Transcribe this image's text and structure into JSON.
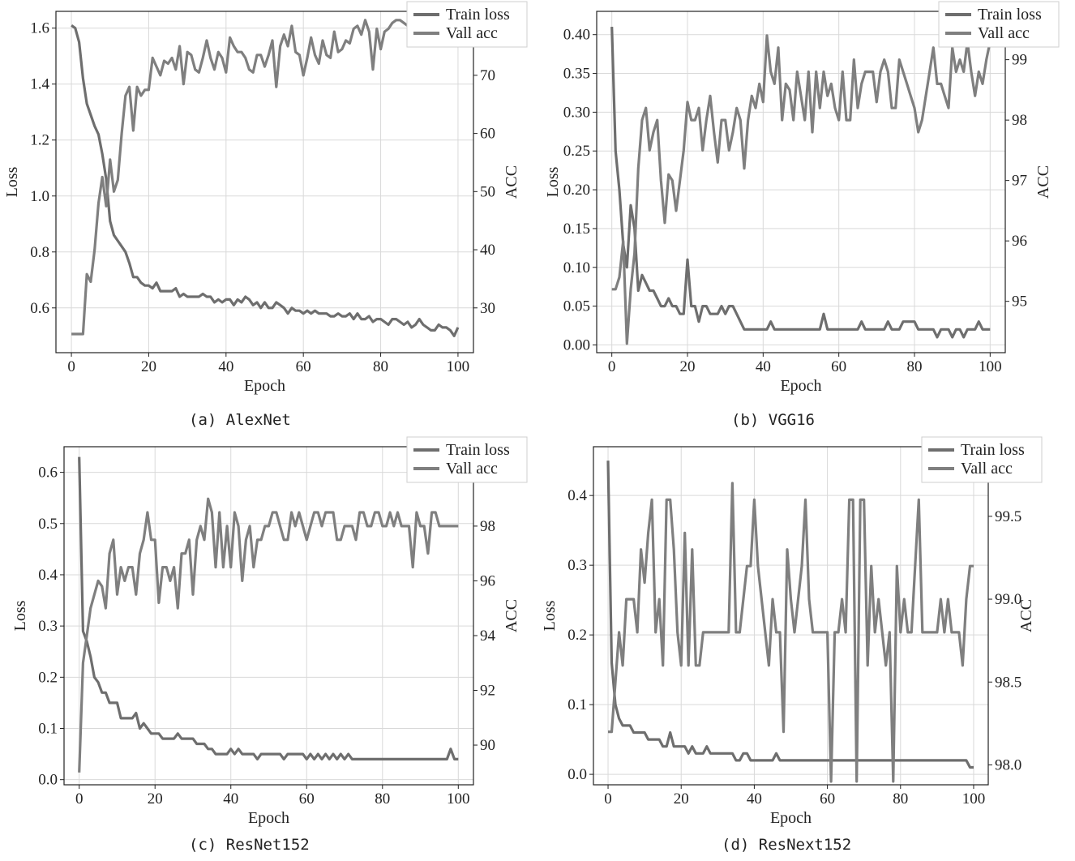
{
  "captions": [
    "(a) AlexNet",
    "(b) VGG16",
    "(c) ResNet152",
    "(d) ResNext152"
  ],
  "colors": {
    "train_loss": "#6e6e6e",
    "vall_acc": "#7f7f7f",
    "grid": "#d9d9d9",
    "axis": "#222222"
  },
  "chart_data": [
    {
      "type": "line",
      "xlabel": "Epoch",
      "ylabel": "Loss",
      "y2label": "ACC",
      "xlim": [
        -4,
        104
      ],
      "xticks": [
        0,
        20,
        40,
        60,
        80,
        100
      ],
      "ylim": [
        0.44,
        1.66
      ],
      "yticks": [
        "0.6",
        "0.8",
        "1.0",
        "1.2",
        "1.4",
        "1.6"
      ],
      "y2lim": [
        22.3,
        81
      ],
      "y2ticks": [
        "30",
        "40",
        "50",
        "60",
        "70"
      ],
      "legend": "top-right",
      "series": [
        {
          "name": "Train loss",
          "axis": "left",
          "values": [
            1.61,
            1.6,
            1.55,
            1.42,
            1.33,
            1.29,
            1.25,
            1.22,
            1.15,
            1.06,
            0.91,
            0.86,
            0.84,
            0.82,
            0.8,
            0.76,
            0.71,
            0.71,
            0.69,
            0.68,
            0.68,
            0.67,
            0.69,
            0.66,
            0.66,
            0.66,
            0.66,
            0.67,
            0.64,
            0.65,
            0.64,
            0.64,
            0.64,
            0.64,
            0.65,
            0.64,
            0.64,
            0.62,
            0.63,
            0.62,
            0.63,
            0.63,
            0.61,
            0.63,
            0.62,
            0.64,
            0.63,
            0.61,
            0.62,
            0.6,
            0.62,
            0.6,
            0.6,
            0.62,
            0.61,
            0.6,
            0.58,
            0.6,
            0.59,
            0.59,
            0.58,
            0.59,
            0.58,
            0.59,
            0.58,
            0.58,
            0.58,
            0.57,
            0.57,
            0.58,
            0.57,
            0.57,
            0.58,
            0.56,
            0.58,
            0.56,
            0.56,
            0.57,
            0.55,
            0.56,
            0.56,
            0.55,
            0.54,
            0.56,
            0.56,
            0.55,
            0.54,
            0.55,
            0.53,
            0.54,
            0.56,
            0.54,
            0.53,
            0.52,
            0.52,
            0.54,
            0.53,
            0.53,
            0.52,
            0.5,
            0.53
          ]
        },
        {
          "name": "Vall acc",
          "axis": "right",
          "values": [
            25.5,
            25.5,
            25.5,
            25.5,
            35.8,
            34.5,
            40.0,
            48.0,
            52.5,
            47.5,
            55.5,
            50.0,
            52.0,
            60.0,
            66.5,
            68.0,
            60.5,
            68.0,
            66.5,
            67.5,
            67.5,
            73.0,
            71.5,
            70.0,
            72.5,
            72.0,
            73.0,
            71.0,
            75.0,
            68.5,
            74.0,
            73.5,
            71.0,
            70.5,
            73.0,
            76.0,
            73.0,
            71.0,
            74.0,
            73.0,
            70.5,
            76.5,
            75.0,
            74.0,
            74.0,
            73.0,
            71.0,
            70.5,
            73.5,
            73.5,
            71.5,
            73.5,
            76.0,
            68.0,
            75.0,
            77.0,
            75.0,
            78.5,
            74.0,
            73.5,
            70.0,
            73.0,
            76.5,
            73.5,
            72.0,
            76.0,
            73.5,
            73.0,
            77.5,
            74.0,
            74.5,
            76.0,
            75.5,
            78.0,
            78.5,
            77.0,
            79.5,
            77.5,
            71.0,
            78.0,
            74.5,
            77.5,
            78.0,
            79.0,
            79.5,
            79.5,
            79.0,
            78.5,
            78.5,
            78.0,
            80.0,
            80.0,
            80.0,
            79.5,
            80.0,
            77.5,
            79.5,
            80.0,
            79.5,
            80.0,
            80.0
          ]
        }
      ]
    },
    {
      "type": "line",
      "xlabel": "Epoch",
      "ylabel": "Loss",
      "y2label": "ACC",
      "xlim": [
        -4,
        104
      ],
      "xticks": [
        0,
        20,
        40,
        60,
        80,
        100
      ],
      "ylim": [
        -0.01,
        0.43
      ],
      "yticks": [
        "0.00",
        "0.05",
        "0.10",
        "0.15",
        "0.20",
        "0.25",
        "0.30",
        "0.35",
        "0.40"
      ],
      "y2lim": [
        94.15,
        99.8
      ],
      "y2ticks": [
        "95",
        "96",
        "97",
        "98",
        "99"
      ],
      "legend": "top-right",
      "series": [
        {
          "name": "Train loss",
          "axis": "left",
          "values": [
            0.41,
            0.25,
            0.2,
            0.13,
            0.1,
            0.18,
            0.15,
            0.07,
            0.09,
            0.08,
            0.07,
            0.07,
            0.06,
            0.05,
            0.05,
            0.06,
            0.05,
            0.05,
            0.04,
            0.04,
            0.11,
            0.05,
            0.05,
            0.03,
            0.05,
            0.05,
            0.04,
            0.04,
            0.04,
            0.05,
            0.04,
            0.05,
            0.05,
            0.04,
            0.03,
            0.02,
            0.02,
            0.02,
            0.02,
            0.02,
            0.02,
            0.02,
            0.03,
            0.02,
            0.02,
            0.02,
            0.02,
            0.02,
            0.02,
            0.02,
            0.02,
            0.02,
            0.02,
            0.02,
            0.02,
            0.02,
            0.04,
            0.02,
            0.02,
            0.02,
            0.02,
            0.02,
            0.02,
            0.02,
            0.02,
            0.02,
            0.03,
            0.02,
            0.02,
            0.02,
            0.02,
            0.02,
            0.02,
            0.03,
            0.02,
            0.02,
            0.02,
            0.03,
            0.03,
            0.03,
            0.03,
            0.02,
            0.02,
            0.02,
            0.02,
            0.02,
            0.01,
            0.02,
            0.02,
            0.02,
            0.01,
            0.02,
            0.02,
            0.01,
            0.02,
            0.02,
            0.02,
            0.03,
            0.02,
            0.02,
            0.02
          ]
        },
        {
          "name": "Vall acc",
          "axis": "right",
          "values": [
            95.2,
            95.2,
            95.4,
            96.0,
            94.3,
            95.2,
            95.8,
            97.2,
            98.0,
            98.2,
            97.5,
            97.8,
            98.0,
            97.0,
            96.3,
            97.1,
            97.0,
            96.5,
            97.0,
            97.5,
            98.3,
            98.0,
            98.0,
            98.2,
            97.5,
            98.0,
            98.4,
            97.8,
            97.3,
            98.0,
            98.0,
            97.5,
            97.8,
            98.2,
            98.0,
            97.2,
            98.0,
            98.4,
            98.2,
            98.6,
            98.3,
            99.4,
            98.8,
            98.6,
            99.2,
            98.0,
            98.6,
            98.5,
            98.0,
            98.8,
            98.4,
            98.0,
            98.8,
            97.8,
            98.8,
            98.2,
            98.8,
            98.4,
            98.6,
            98.2,
            98.0,
            98.8,
            98.0,
            98.0,
            99.0,
            98.2,
            98.6,
            98.8,
            98.8,
            98.8,
            98.3,
            98.8,
            99.0,
            98.8,
            98.2,
            98.2,
            99.0,
            98.8,
            98.6,
            98.4,
            98.2,
            97.8,
            98.0,
            98.4,
            98.8,
            99.2,
            98.6,
            98.6,
            98.4,
            98.2,
            99.2,
            98.8,
            99.0,
            98.8,
            99.3,
            98.8,
            98.4,
            98.8,
            98.6,
            99.0,
            99.3
          ]
        }
      ]
    },
    {
      "type": "line",
      "xlabel": "Epoch",
      "ylabel": "Loss",
      "y2label": "ACC",
      "xlim": [
        -4,
        104
      ],
      "xticks": [
        0,
        20,
        40,
        60,
        80,
        100
      ],
      "ylim": [
        -0.01,
        0.65
      ],
      "yticks": [
        "0.0",
        "0.1",
        "0.2",
        "0.3",
        "0.4",
        "0.5",
        "0.6"
      ],
      "y2lim": [
        88.55,
        100.9
      ],
      "y2ticks": [
        "90",
        "92",
        "94",
        "96",
        "98"
      ],
      "legend": "top-right",
      "series": [
        {
          "name": "Train loss",
          "axis": "left",
          "values": [
            0.63,
            0.29,
            0.27,
            0.24,
            0.2,
            0.19,
            0.17,
            0.17,
            0.15,
            0.15,
            0.15,
            0.12,
            0.12,
            0.12,
            0.12,
            0.13,
            0.1,
            0.11,
            0.1,
            0.09,
            0.09,
            0.09,
            0.08,
            0.08,
            0.08,
            0.08,
            0.09,
            0.08,
            0.08,
            0.08,
            0.08,
            0.07,
            0.07,
            0.07,
            0.06,
            0.06,
            0.05,
            0.05,
            0.05,
            0.05,
            0.06,
            0.05,
            0.06,
            0.05,
            0.05,
            0.05,
            0.05,
            0.04,
            0.05,
            0.05,
            0.05,
            0.05,
            0.05,
            0.05,
            0.04,
            0.05,
            0.05,
            0.05,
            0.05,
            0.05,
            0.04,
            0.05,
            0.04,
            0.05,
            0.04,
            0.05,
            0.04,
            0.05,
            0.04,
            0.05,
            0.04,
            0.05,
            0.04,
            0.04,
            0.04,
            0.04,
            0.04,
            0.04,
            0.04,
            0.04,
            0.04,
            0.04,
            0.04,
            0.04,
            0.04,
            0.04,
            0.04,
            0.04,
            0.04,
            0.04,
            0.04,
            0.04,
            0.04,
            0.04,
            0.04,
            0.04,
            0.04,
            0.04,
            0.06,
            0.04,
            0.04
          ]
        },
        {
          "name": "Vall acc",
          "axis": "right",
          "values": [
            89.0,
            93.0,
            94.0,
            95.0,
            95.5,
            96.0,
            95.8,
            95.0,
            97.0,
            97.5,
            95.5,
            96.5,
            96.0,
            96.5,
            96.5,
            95.5,
            97.0,
            97.5,
            98.5,
            97.5,
            97.5,
            95.2,
            96.5,
            96.5,
            96.0,
            96.5,
            95.0,
            97.0,
            97.0,
            97.5,
            95.5,
            97.5,
            98.0,
            97.5,
            99.0,
            98.5,
            96.5,
            98.5,
            96.5,
            98.0,
            96.5,
            98.5,
            98.0,
            96.0,
            97.5,
            98.0,
            96.5,
            97.5,
            97.5,
            98.0,
            98.0,
            98.5,
            98.5,
            98.0,
            97.5,
            97.5,
            98.5,
            98.0,
            98.5,
            98.0,
            97.5,
            98.0,
            98.5,
            98.5,
            98.0,
            98.5,
            98.5,
            98.5,
            97.5,
            97.5,
            98.0,
            98.0,
            98.0,
            97.5,
            98.5,
            98.5,
            98.0,
            98.0,
            98.5,
            98.5,
            98.0,
            98.0,
            98.5,
            98.0,
            98.5,
            98.0,
            98.0,
            98.0,
            96.5,
            98.5,
            98.0,
            98.0,
            97.0,
            98.5,
            98.5,
            98.0,
            98.0,
            98.0,
            98.0,
            98.0,
            98.0
          ]
        }
      ]
    },
    {
      "type": "line",
      "xlabel": "Epoch",
      "ylabel": "Loss",
      "y2label": "ACC",
      "xlim": [
        -4,
        104
      ],
      "xticks": [
        0,
        20,
        40,
        60,
        80,
        100
      ],
      "ylim": [
        -0.015,
        0.47
      ],
      "yticks": [
        "0.0",
        "0.1",
        "0.2",
        "0.3",
        "0.4"
      ],
      "y2lim": [
        97.88,
        99.92
      ],
      "y2ticks": [
        "98.0",
        "98.5",
        "99.0",
        "99.5"
      ],
      "legend": "top-right",
      "series": [
        {
          "name": "Train loss",
          "axis": "left",
          "values": [
            0.45,
            0.16,
            0.1,
            0.08,
            0.07,
            0.07,
            0.07,
            0.06,
            0.06,
            0.06,
            0.06,
            0.05,
            0.05,
            0.05,
            0.05,
            0.04,
            0.04,
            0.06,
            0.04,
            0.04,
            0.04,
            0.04,
            0.03,
            0.04,
            0.03,
            0.03,
            0.03,
            0.04,
            0.03,
            0.03,
            0.03,
            0.03,
            0.03,
            0.03,
            0.03,
            0.02,
            0.02,
            0.03,
            0.03,
            0.02,
            0.02,
            0.02,
            0.02,
            0.02,
            0.02,
            0.02,
            0.03,
            0.02,
            0.02,
            0.02,
            0.02,
            0.02,
            0.02,
            0.02,
            0.02,
            0.02,
            0.02,
            0.02,
            0.02,
            0.02,
            0.02,
            0.02,
            0.02,
            0.02,
            0.02,
            0.02,
            0.02,
            0.02,
            0.02,
            0.02,
            0.02,
            0.02,
            0.02,
            0.02,
            0.02,
            0.02,
            0.02,
            0.02,
            0.02,
            0.02,
            0.02,
            0.02,
            0.02,
            0.02,
            0.02,
            0.02,
            0.02,
            0.02,
            0.02,
            0.02,
            0.02,
            0.02,
            0.02,
            0.02,
            0.02,
            0.02,
            0.02,
            0.02,
            0.02,
            0.01,
            0.01
          ]
        },
        {
          "name": "Vall acc",
          "axis": "right",
          "values": [
            98.2,
            98.2,
            98.5,
            98.8,
            98.6,
            99.0,
            99.0,
            99.0,
            98.8,
            99.3,
            99.1,
            99.4,
            99.6,
            98.8,
            99.0,
            98.6,
            99.6,
            99.6,
            99.3,
            98.8,
            98.6,
            99.4,
            98.6,
            99.3,
            98.6,
            98.6,
            98.8,
            98.8,
            98.8,
            98.8,
            98.8,
            98.8,
            98.8,
            98.8,
            99.7,
            98.8,
            98.8,
            99.0,
            99.2,
            99.2,
            99.6,
            99.2,
            99.0,
            98.8,
            98.6,
            99.0,
            98.8,
            98.8,
            98.2,
            99.3,
            99.0,
            98.8,
            99.0,
            99.2,
            99.6,
            99.0,
            98.8,
            98.8,
            98.8,
            98.8,
            98.8,
            97.9,
            98.8,
            98.8,
            99.0,
            98.8,
            99.6,
            99.6,
            97.9,
            99.6,
            99.6,
            98.6,
            99.2,
            98.8,
            99.0,
            98.8,
            98.6,
            98.8,
            97.9,
            99.2,
            98.8,
            99.0,
            98.8,
            98.8,
            99.2,
            99.6,
            98.8,
            98.8,
            98.8,
            98.8,
            98.8,
            99.0,
            98.8,
            99.0,
            98.8,
            98.8,
            98.8,
            98.6,
            99.0,
            99.2,
            99.2
          ]
        }
      ]
    }
  ]
}
